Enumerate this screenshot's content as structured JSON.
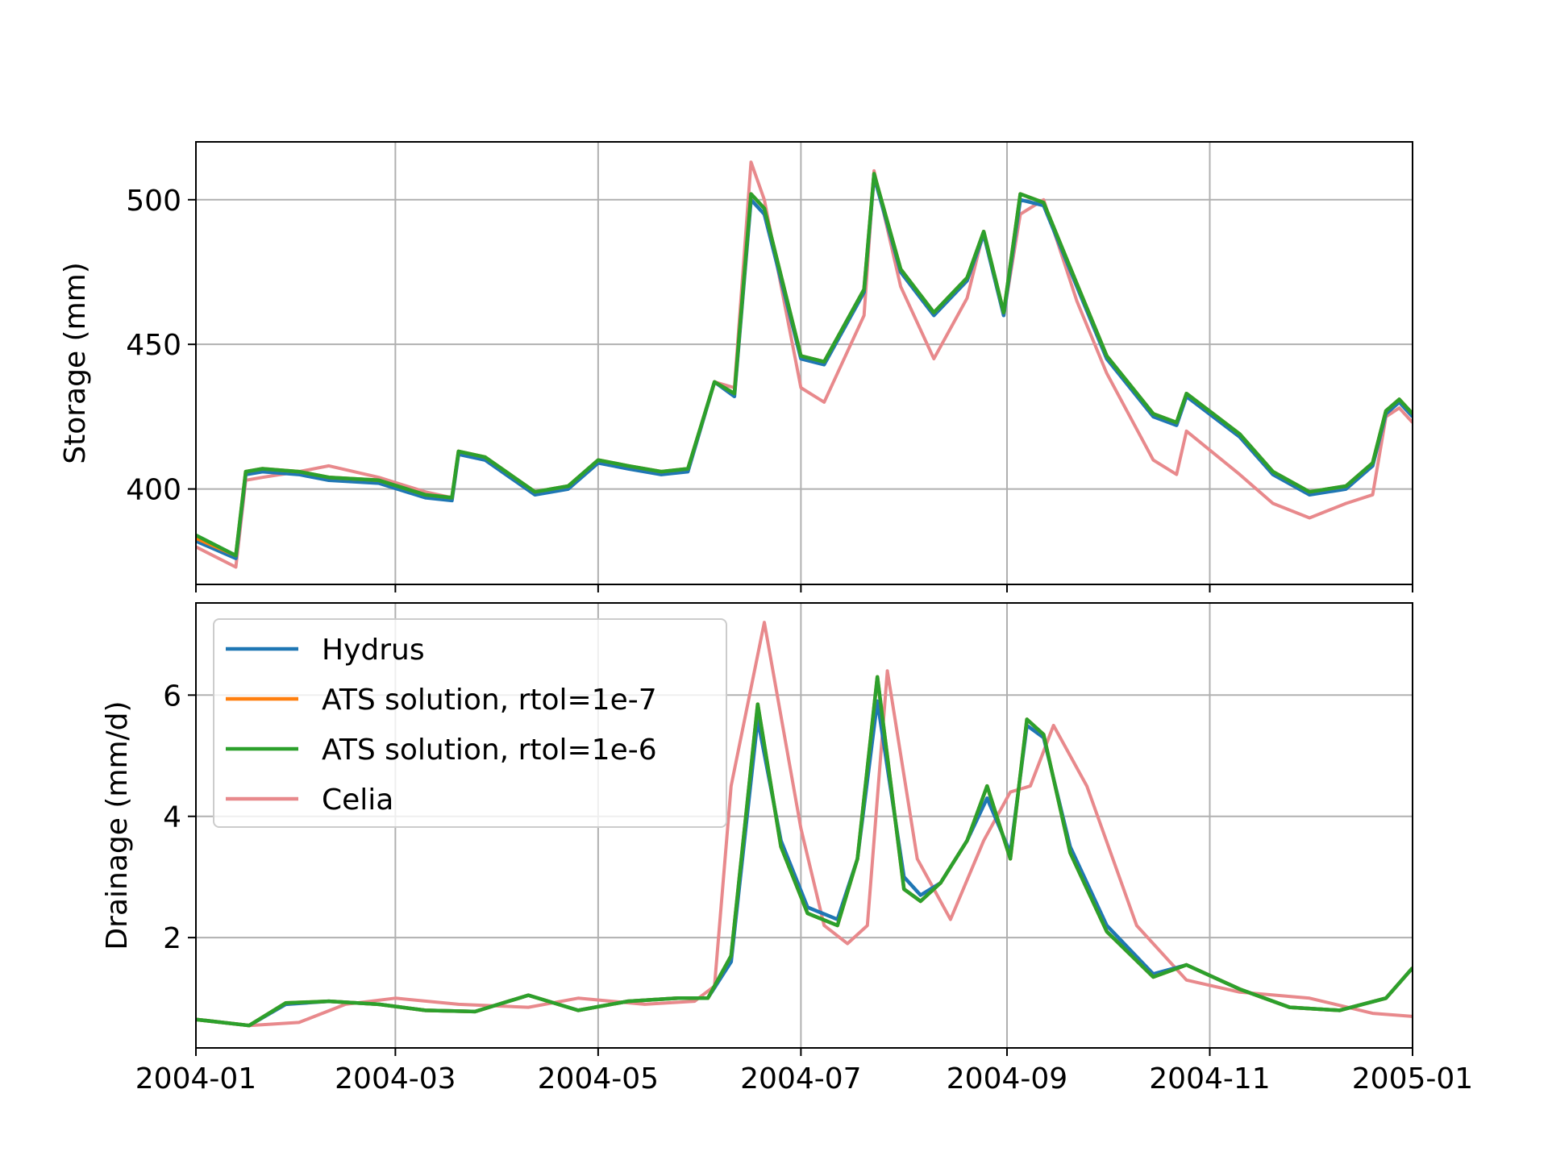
{
  "chart_data": [
    {
      "type": "line",
      "xlabel": "",
      "ylabel": "Storage (mm)",
      "xlim": [
        "2004-01-01",
        "2005-01-01"
      ],
      "ylim": [
        367,
        520
      ],
      "grid": true,
      "x_ticks": [
        "2004-01",
        "2004-03",
        "2004-05",
        "2004-07",
        "2004-09",
        "2004-11",
        "2005-01"
      ],
      "y_ticks": [
        400,
        450,
        500
      ],
      "series": [
        {
          "name": "Hydrus",
          "color": "#1f77b4",
          "x": [
            "2004-01-01",
            "2004-01-13",
            "2004-01-16",
            "2004-01-21",
            "2004-02-01",
            "2004-02-10",
            "2004-02-25",
            "2004-03-10",
            "2004-03-18",
            "2004-03-20",
            "2004-03-28",
            "2004-04-12",
            "2004-04-22",
            "2004-05-01",
            "2004-05-10",
            "2004-05-20",
            "2004-05-28",
            "2004-06-05",
            "2004-06-11",
            "2004-06-16",
            "2004-06-20",
            "2004-07-01",
            "2004-07-08",
            "2004-07-20",
            "2004-07-23",
            "2004-07-31",
            "2004-08-10",
            "2004-08-20",
            "2004-08-25",
            "2004-08-31",
            "2004-09-05",
            "2004-09-12",
            "2004-09-22",
            "2004-10-01",
            "2004-10-15",
            "2004-10-22",
            "2004-10-25",
            "2004-11-10",
            "2004-11-20",
            "2004-12-01",
            "2004-12-12",
            "2004-12-20",
            "2004-12-24",
            "2004-12-28",
            "2005-01-01"
          ],
          "y": [
            382,
            376,
            405,
            406,
            405,
            403,
            402,
            397,
            396,
            412,
            410,
            398,
            400,
            409,
            407,
            405,
            406,
            437,
            432,
            500,
            495,
            445,
            443,
            468,
            508,
            475,
            460,
            472,
            488,
            460,
            500,
            498,
            470,
            445,
            425,
            422,
            432,
            418,
            405,
            398,
            400,
            408,
            426,
            430,
            425
          ]
        },
        {
          "name": "ATS solution, rtol=1e-7",
          "color": "#ff7f0e",
          "x": [
            "2004-01-01",
            "2004-01-13",
            "2004-01-16",
            "2004-01-21",
            "2004-02-01",
            "2004-02-10",
            "2004-02-25",
            "2004-03-10",
            "2004-03-18",
            "2004-03-20",
            "2004-03-28",
            "2004-04-12",
            "2004-04-22",
            "2004-05-01",
            "2004-05-10",
            "2004-05-20",
            "2004-05-28",
            "2004-06-05",
            "2004-06-11",
            "2004-06-16",
            "2004-06-20",
            "2004-07-01",
            "2004-07-08",
            "2004-07-20",
            "2004-07-23",
            "2004-07-31",
            "2004-08-10",
            "2004-08-20",
            "2004-08-25",
            "2004-08-31",
            "2004-09-05",
            "2004-09-12",
            "2004-09-22",
            "2004-10-01",
            "2004-10-15",
            "2004-10-22",
            "2004-10-25",
            "2004-11-10",
            "2004-11-20",
            "2004-12-01",
            "2004-12-12",
            "2004-12-20",
            "2004-12-24",
            "2004-12-28",
            "2005-01-01"
          ],
          "y": [
            383,
            377,
            406,
            407,
            406,
            404,
            403,
            398,
            397,
            413,
            411,
            399,
            401,
            410,
            408,
            406,
            407,
            437,
            433,
            502,
            497,
            446,
            444,
            469,
            509,
            476,
            461,
            473,
            489,
            461,
            502,
            499,
            471,
            446,
            426,
            423,
            433,
            419,
            406,
            399,
            401,
            409,
            427,
            431,
            426
          ]
        },
        {
          "name": "ATS solution, rtol=1e-6",
          "color": "#2ca02c",
          "x": [
            "2004-01-01",
            "2004-01-13",
            "2004-01-16",
            "2004-01-21",
            "2004-02-01",
            "2004-02-10",
            "2004-02-25",
            "2004-03-10",
            "2004-03-18",
            "2004-03-20",
            "2004-03-28",
            "2004-04-12",
            "2004-04-22",
            "2004-05-01",
            "2004-05-10",
            "2004-05-20",
            "2004-05-28",
            "2004-06-05",
            "2004-06-11",
            "2004-06-16",
            "2004-06-20",
            "2004-07-01",
            "2004-07-08",
            "2004-07-20",
            "2004-07-23",
            "2004-07-31",
            "2004-08-10",
            "2004-08-20",
            "2004-08-25",
            "2004-08-31",
            "2004-09-05",
            "2004-09-12",
            "2004-09-22",
            "2004-10-01",
            "2004-10-15",
            "2004-10-22",
            "2004-10-25",
            "2004-11-10",
            "2004-11-20",
            "2004-12-01",
            "2004-12-12",
            "2004-12-20",
            "2004-12-24",
            "2004-12-28",
            "2005-01-01"
          ],
          "y": [
            384,
            377,
            406,
            407,
            406,
            404,
            403,
            398,
            397,
            413,
            411,
            399,
            401,
            410,
            408,
            406,
            407,
            437,
            433,
            502,
            497,
            446,
            444,
            469,
            509,
            476,
            461,
            473,
            489,
            461,
            502,
            499,
            471,
            446,
            426,
            423,
            433,
            419,
            406,
            399,
            401,
            409,
            427,
            431,
            426
          ]
        },
        {
          "name": "Celia",
          "color": "#e8898c",
          "x": [
            "2004-01-01",
            "2004-01-13",
            "2004-01-16",
            "2004-01-21",
            "2004-02-01",
            "2004-02-10",
            "2004-02-25",
            "2004-03-10",
            "2004-03-18",
            "2004-03-20",
            "2004-03-28",
            "2004-04-12",
            "2004-04-22",
            "2004-05-01",
            "2004-05-10",
            "2004-05-20",
            "2004-05-28",
            "2004-06-05",
            "2004-06-11",
            "2004-06-16",
            "2004-06-20",
            "2004-07-01",
            "2004-07-08",
            "2004-07-20",
            "2004-07-23",
            "2004-07-31",
            "2004-08-10",
            "2004-08-20",
            "2004-08-25",
            "2004-08-31",
            "2004-09-05",
            "2004-09-12",
            "2004-09-22",
            "2004-10-01",
            "2004-10-15",
            "2004-10-22",
            "2004-10-25",
            "2004-11-10",
            "2004-11-20",
            "2004-12-01",
            "2004-12-12",
            "2004-12-20",
            "2004-12-24",
            "2004-12-28",
            "2005-01-01"
          ],
          "y": [
            380,
            373,
            403,
            404,
            406,
            408,
            404,
            399,
            397,
            412,
            410,
            399,
            401,
            410,
            408,
            406,
            407,
            437,
            435,
            513,
            500,
            435,
            430,
            460,
            510,
            470,
            445,
            466,
            489,
            460,
            495,
            500,
            465,
            440,
            410,
            405,
            420,
            405,
            395,
            390,
            395,
            398,
            425,
            428,
            423
          ]
        }
      ]
    },
    {
      "type": "line",
      "xlabel": "",
      "ylabel": "Drainage (mm/d)",
      "xlim": [
        "2004-01-01",
        "2005-01-01"
      ],
      "ylim": [
        0.18,
        7.52
      ],
      "grid": true,
      "x_ticks": [
        "2004-01",
        "2004-03",
        "2004-05",
        "2004-07",
        "2004-09",
        "2004-11",
        "2005-01"
      ],
      "y_ticks": [
        2,
        4,
        6
      ],
      "legend": {
        "location": "upper-left",
        "entries": [
          "Hydrus",
          "ATS solution, rtol=1e-7",
          "ATS solution, rtol=1e-6",
          "Celia"
        ]
      },
      "series": [
        {
          "name": "Hydrus",
          "color": "#1f77b4",
          "x": [
            "2004-01-01",
            "2004-01-17",
            "2004-01-28",
            "2004-02-10",
            "2004-02-25",
            "2004-03-10",
            "2004-03-25",
            "2004-04-10",
            "2004-04-25",
            "2004-05-10",
            "2004-05-25",
            "2004-06-03",
            "2004-06-10",
            "2004-06-18",
            "2004-06-25",
            "2004-07-03",
            "2004-07-12",
            "2004-07-18",
            "2004-07-24",
            "2004-08-01",
            "2004-08-06",
            "2004-08-12",
            "2004-08-20",
            "2004-08-26",
            "2004-09-02",
            "2004-09-07",
            "2004-09-12",
            "2004-09-20",
            "2004-10-01",
            "2004-10-15",
            "2004-10-25",
            "2004-11-10",
            "2004-11-25",
            "2004-12-10",
            "2004-12-24",
            "2005-01-01"
          ],
          "y": [
            0.65,
            0.55,
            0.9,
            0.95,
            0.9,
            0.8,
            0.78,
            1.05,
            0.8,
            0.95,
            1.0,
            1.0,
            1.6,
            5.6,
            3.6,
            2.5,
            2.3,
            3.3,
            5.9,
            3.0,
            2.7,
            2.9,
            3.6,
            4.3,
            3.4,
            5.5,
            5.3,
            3.5,
            2.2,
            1.4,
            1.55,
            1.15,
            0.85,
            0.8,
            1.0,
            1.5
          ]
        },
        {
          "name": "ATS solution, rtol=1e-7",
          "color": "#ff7f0e",
          "x": [
            "2004-01-01",
            "2004-01-17",
            "2004-01-28",
            "2004-02-10",
            "2004-02-25",
            "2004-03-10",
            "2004-03-25",
            "2004-04-10",
            "2004-04-25",
            "2004-05-10",
            "2004-05-25",
            "2004-06-03",
            "2004-06-10",
            "2004-06-18",
            "2004-06-25",
            "2004-07-03",
            "2004-07-12",
            "2004-07-18",
            "2004-07-24",
            "2004-08-01",
            "2004-08-06",
            "2004-08-12",
            "2004-08-20",
            "2004-08-26",
            "2004-09-02",
            "2004-09-07",
            "2004-09-12",
            "2004-09-20",
            "2004-10-01",
            "2004-10-15",
            "2004-10-25",
            "2004-11-10",
            "2004-11-25",
            "2004-12-10",
            "2004-12-24",
            "2005-01-01"
          ],
          "y": [
            0.65,
            0.55,
            0.92,
            0.95,
            0.9,
            0.8,
            0.78,
            1.05,
            0.8,
            0.95,
            1.0,
            1.0,
            1.7,
            5.85,
            3.5,
            2.4,
            2.2,
            3.3,
            6.3,
            2.8,
            2.6,
            2.9,
            3.6,
            4.5,
            3.3,
            5.6,
            5.35,
            3.4,
            2.1,
            1.35,
            1.55,
            1.15,
            0.85,
            0.8,
            1.0,
            1.5
          ]
        },
        {
          "name": "ATS solution, rtol=1e-6",
          "color": "#2ca02c",
          "x": [
            "2004-01-01",
            "2004-01-17",
            "2004-01-28",
            "2004-02-10",
            "2004-02-25",
            "2004-03-10",
            "2004-03-25",
            "2004-04-10",
            "2004-04-25",
            "2004-05-10",
            "2004-05-25",
            "2004-06-03",
            "2004-06-10",
            "2004-06-18",
            "2004-06-25",
            "2004-07-03",
            "2004-07-12",
            "2004-07-18",
            "2004-07-24",
            "2004-08-01",
            "2004-08-06",
            "2004-08-12",
            "2004-08-20",
            "2004-08-26",
            "2004-09-02",
            "2004-09-07",
            "2004-09-12",
            "2004-09-20",
            "2004-10-01",
            "2004-10-15",
            "2004-10-25",
            "2004-11-10",
            "2004-11-25",
            "2004-12-10",
            "2004-12-24",
            "2005-01-01"
          ],
          "y": [
            0.65,
            0.55,
            0.92,
            0.95,
            0.9,
            0.8,
            0.78,
            1.05,
            0.8,
            0.95,
            1.0,
            1.0,
            1.7,
            5.85,
            3.5,
            2.4,
            2.2,
            3.3,
            6.3,
            2.8,
            2.6,
            2.9,
            3.6,
            4.5,
            3.3,
            5.6,
            5.35,
            3.4,
            2.1,
            1.35,
            1.55,
            1.15,
            0.85,
            0.8,
            1.0,
            1.5
          ]
        },
        {
          "name": "Celia",
          "color": "#e8898c",
          "x": [
            "2004-01-01",
            "2004-01-17",
            "2004-02-01",
            "2004-02-15",
            "2004-03-01",
            "2004-03-20",
            "2004-04-10",
            "2004-04-25",
            "2004-05-15",
            "2004-05-30",
            "2004-06-05",
            "2004-06-10",
            "2004-06-20",
            "2004-07-01",
            "2004-07-08",
            "2004-07-15",
            "2004-07-21",
            "2004-07-27",
            "2004-08-05",
            "2004-08-15",
            "2004-08-25",
            "2004-09-02",
            "2004-09-08",
            "2004-09-15",
            "2004-09-25",
            "2004-10-10",
            "2004-10-25",
            "2004-11-10",
            "2004-12-01",
            "2004-12-20",
            "2005-01-01"
          ],
          "y": [
            0.65,
            0.55,
            0.6,
            0.9,
            1.0,
            0.9,
            0.85,
            1.0,
            0.9,
            0.95,
            1.2,
            4.5,
            7.2,
            3.8,
            2.2,
            1.9,
            2.2,
            6.4,
            3.3,
            2.3,
            3.6,
            4.4,
            4.5,
            5.5,
            4.5,
            2.2,
            1.3,
            1.1,
            1.0,
            0.75,
            0.7
          ]
        }
      ]
    }
  ]
}
